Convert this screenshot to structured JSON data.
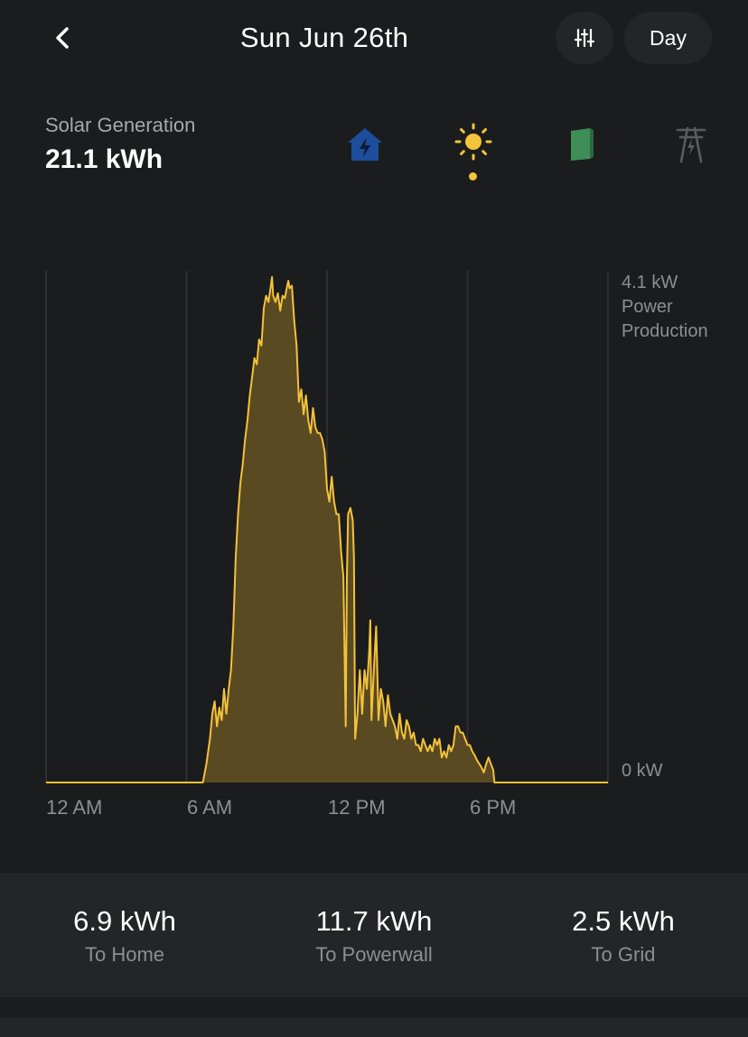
{
  "header": {
    "title": "Sun Jun 26th",
    "period_label": "Day"
  },
  "summary": {
    "label": "Solar Generation",
    "value": "21.1 kWh"
  },
  "sources": [
    {
      "icon": "home-icon",
      "color": "#1d4e9e"
    },
    {
      "icon": "sun-icon",
      "color": "#f5c43b",
      "active": true
    },
    {
      "icon": "powerwall-icon",
      "color": "#3f8d57"
    },
    {
      "icon": "grid-tower-icon",
      "color": "#5a5b5e"
    }
  ],
  "chart_data": {
    "type": "area",
    "x_unit": "hour of day",
    "y_unit": "kW",
    "ylim": [
      0,
      4.1
    ],
    "xlim": [
      0,
      24
    ],
    "y_tick_labels": [
      "4.1 kW",
      "0 kW"
    ],
    "y_axis_label": [
      "Power",
      "Production"
    ],
    "x_tick_labels": [
      "12 AM",
      "6 AM",
      "12 PM",
      "6 PM"
    ],
    "x_ticks": [
      0,
      6,
      12,
      18
    ],
    "grid": true,
    "series": [
      {
        "color": "#f3c23a",
        "fill": "#5a4a22",
        "points": [
          [
            0,
            0
          ],
          [
            6.7,
            0
          ],
          [
            6.85,
            0.15
          ],
          [
            7.0,
            0.35
          ],
          [
            7.1,
            0.55
          ],
          [
            7.2,
            0.65
          ],
          [
            7.3,
            0.45
          ],
          [
            7.4,
            0.6
          ],
          [
            7.5,
            0.5
          ],
          [
            7.6,
            0.75
          ],
          [
            7.7,
            0.55
          ],
          [
            7.8,
            0.75
          ],
          [
            7.9,
            0.9
          ],
          [
            8.0,
            1.25
          ],
          [
            8.1,
            1.8
          ],
          [
            8.2,
            2.15
          ],
          [
            8.3,
            2.4
          ],
          [
            8.4,
            2.55
          ],
          [
            8.5,
            2.75
          ],
          [
            8.6,
            2.9
          ],
          [
            8.7,
            3.1
          ],
          [
            8.8,
            3.25
          ],
          [
            8.9,
            3.4
          ],
          [
            9.0,
            3.35
          ],
          [
            9.1,
            3.55
          ],
          [
            9.2,
            3.5
          ],
          [
            9.3,
            3.8
          ],
          [
            9.4,
            3.9
          ],
          [
            9.5,
            3.85
          ],
          [
            9.6,
            3.98
          ],
          [
            9.65,
            4.05
          ],
          [
            9.7,
            3.9
          ],
          [
            9.8,
            3.85
          ],
          [
            9.9,
            3.92
          ],
          [
            10.0,
            3.78
          ],
          [
            10.1,
            3.9
          ],
          [
            10.2,
            3.88
          ],
          [
            10.3,
            3.98
          ],
          [
            10.35,
            4.02
          ],
          [
            10.4,
            3.96
          ],
          [
            10.5,
            3.98
          ],
          [
            10.6,
            3.7
          ],
          [
            10.7,
            3.5
          ],
          [
            10.8,
            3.05
          ],
          [
            10.9,
            3.15
          ],
          [
            11.0,
            2.95
          ],
          [
            11.1,
            3.1
          ],
          [
            11.2,
            2.9
          ],
          [
            11.3,
            2.8
          ],
          [
            11.4,
            3.0
          ],
          [
            11.5,
            2.85
          ],
          [
            11.6,
            2.8
          ],
          [
            11.7,
            2.8
          ],
          [
            11.8,
            2.75
          ],
          [
            11.9,
            2.65
          ],
          [
            12.0,
            2.35
          ],
          [
            12.1,
            2.25
          ],
          [
            12.2,
            2.45
          ],
          [
            12.3,
            2.25
          ],
          [
            12.4,
            2.15
          ],
          [
            12.5,
            2.15
          ],
          [
            12.6,
            1.85
          ],
          [
            12.7,
            1.65
          ],
          [
            12.8,
            0.45
          ],
          [
            12.85,
            1.65
          ],
          [
            12.9,
            2.15
          ],
          [
            13.0,
            2.2
          ],
          [
            13.1,
            2.1
          ],
          [
            13.15,
            1.8
          ],
          [
            13.2,
            0.35
          ],
          [
            13.3,
            0.55
          ],
          [
            13.4,
            0.9
          ],
          [
            13.5,
            0.55
          ],
          [
            13.6,
            0.9
          ],
          [
            13.7,
            0.75
          ],
          [
            13.8,
            1.05
          ],
          [
            13.85,
            1.3
          ],
          [
            13.9,
            0.5
          ],
          [
            14.0,
            0.9
          ],
          [
            14.1,
            1.25
          ],
          [
            14.2,
            0.5
          ],
          [
            14.3,
            0.75
          ],
          [
            14.4,
            0.65
          ],
          [
            14.5,
            0.45
          ],
          [
            14.6,
            0.7
          ],
          [
            14.7,
            0.55
          ],
          [
            14.8,
            0.5
          ],
          [
            14.9,
            0.45
          ],
          [
            15.0,
            0.35
          ],
          [
            15.1,
            0.55
          ],
          [
            15.2,
            0.4
          ],
          [
            15.3,
            0.35
          ],
          [
            15.4,
            0.5
          ],
          [
            15.5,
            0.45
          ],
          [
            15.6,
            0.35
          ],
          [
            15.7,
            0.4
          ],
          [
            15.8,
            0.3
          ],
          [
            15.9,
            0.3
          ],
          [
            16.0,
            0.25
          ],
          [
            16.1,
            0.35
          ],
          [
            16.2,
            0.3
          ],
          [
            16.3,
            0.25
          ],
          [
            16.4,
            0.3
          ],
          [
            16.5,
            0.25
          ],
          [
            16.6,
            0.35
          ],
          [
            16.7,
            0.3
          ],
          [
            16.8,
            0.35
          ],
          [
            16.9,
            0.2
          ],
          [
            17.0,
            0.25
          ],
          [
            17.1,
            0.2
          ],
          [
            17.2,
            0.3
          ],
          [
            17.3,
            0.25
          ],
          [
            17.4,
            0.3
          ],
          [
            17.5,
            0.45
          ],
          [
            17.6,
            0.45
          ],
          [
            17.7,
            0.4
          ],
          [
            17.8,
            0.4
          ],
          [
            17.9,
            0.35
          ],
          [
            18.0,
            0.3
          ],
          [
            18.1,
            0.3
          ],
          [
            18.2,
            0.25
          ],
          [
            18.3,
            0.22
          ],
          [
            18.4,
            0.18
          ],
          [
            18.5,
            0.15
          ],
          [
            18.6,
            0.12
          ],
          [
            18.7,
            0.08
          ],
          [
            18.8,
            0.15
          ],
          [
            18.9,
            0.2
          ],
          [
            19.0,
            0.15
          ],
          [
            19.1,
            0.1
          ],
          [
            19.15,
            0
          ],
          [
            24,
            0
          ]
        ]
      }
    ]
  },
  "stats": [
    {
      "value": "6.9 kWh",
      "label": "To Home"
    },
    {
      "value": "11.7 kWh",
      "label": "To Powerwall"
    },
    {
      "value": "2.5 kWh",
      "label": "To Grid"
    }
  ]
}
